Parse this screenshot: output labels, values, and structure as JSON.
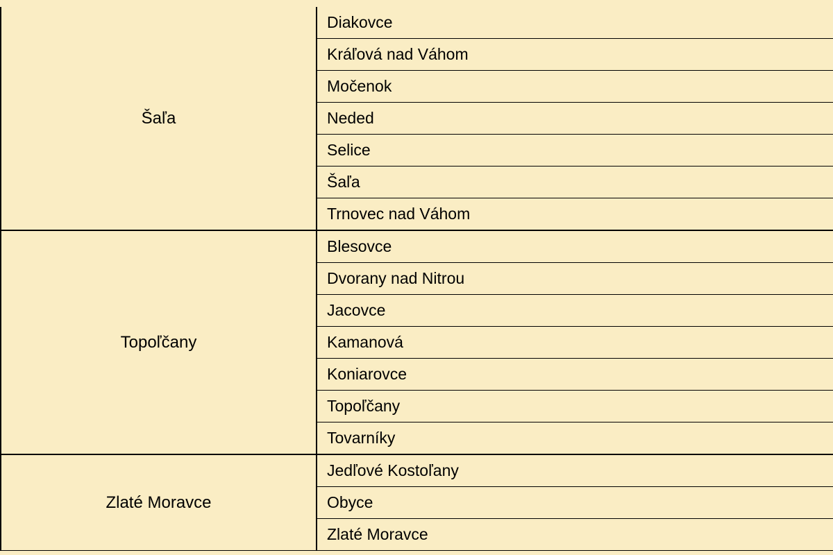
{
  "table": {
    "background_color": "#faedc4",
    "border_color": "#000000",
    "text_color": "#000000",
    "font_family": "Arial",
    "cell_fontsize": 23,
    "group_fontsize": 24,
    "group_column_width": 455,
    "groups": [
      {
        "name": "Šaľa",
        "items": [
          "Diakovce",
          "Kráľová nad Váhom",
          "Močenok",
          "Neded",
          "Selice",
          "Šaľa",
          "Trnovec nad Váhom"
        ]
      },
      {
        "name": "Topoľčany",
        "items": [
          "Blesovce",
          "Dvorany nad Nitrou",
          "Jacovce",
          "Kamanová",
          "Koniarovce",
          "Topoľčany",
          "Tovarníky"
        ]
      },
      {
        "name": "Zlaté Moravce",
        "items": [
          "Jedľové Kostoľany",
          "Obyce",
          "Zlaté Moravce"
        ]
      }
    ]
  }
}
